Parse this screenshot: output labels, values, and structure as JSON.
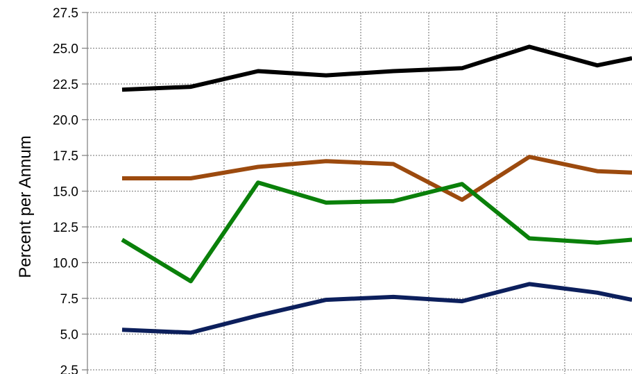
{
  "chart_data": {
    "type": "line",
    "title": "",
    "xlabel": "",
    "ylabel": "Percent per Annum",
    "ylim": [
      2.5,
      27.5
    ],
    "yticks": [
      "2.5",
      "5.0",
      "7.5",
      "10.0",
      "12.5",
      "15.0",
      "17.5",
      "20.0",
      "22.5",
      "25.0",
      "27.5"
    ],
    "grid": true,
    "legend": "none",
    "x": [
      1,
      2,
      3,
      4,
      5,
      6,
      7,
      8,
      9
    ],
    "series": [
      {
        "color": "#000000",
        "values": [
          22.1,
          22.3,
          23.4,
          23.1,
          23.4,
          23.6,
          25.1,
          23.8,
          24.3
        ]
      },
      {
        "color": "#9c4a0e",
        "values": [
          15.9,
          15.9,
          16.7,
          17.1,
          16.9,
          14.4,
          17.4,
          16.4,
          16.3
        ]
      },
      {
        "color": "#0a800a",
        "values": [
          11.6,
          8.7,
          15.6,
          14.2,
          14.3,
          15.5,
          11.7,
          11.4,
          11.6
        ]
      },
      {
        "color": "#0c1f5c",
        "values": [
          5.3,
          5.1,
          6.3,
          7.4,
          7.6,
          7.3,
          8.5,
          7.9,
          7.4
        ]
      }
    ]
  }
}
